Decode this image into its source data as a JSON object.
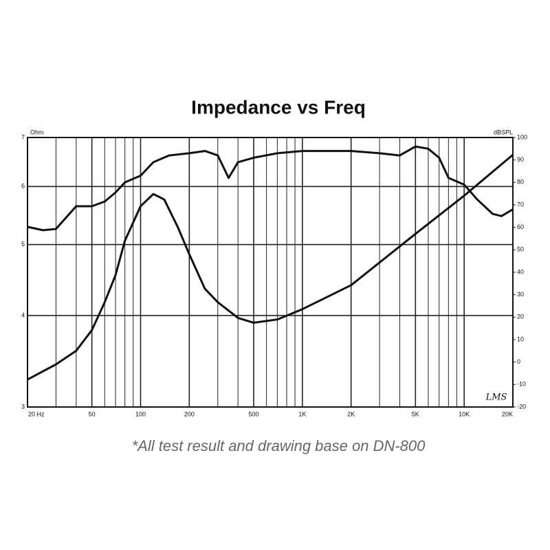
{
  "chart_data": {
    "type": "line",
    "title": "Impedance vs Freq",
    "footnote": "*All test result and drawing base on DN-800",
    "annotation": "LMS",
    "ylabel": "Ohm",
    "y2label": "dBSPL",
    "xscale": "log",
    "yscale": "log",
    "xlim": [
      20,
      20000
    ],
    "xticks": [
      {
        "value": 20,
        "label": "20 Hz"
      },
      50,
      100,
      200,
      500,
      {
        "value": 1000,
        "label": "1K"
      },
      {
        "value": 2000,
        "label": "2K"
      },
      {
        "value": 5000,
        "label": "5K"
      },
      {
        "value": 10000,
        "label": "10K"
      },
      {
        "value": 20000,
        "label": "20K"
      }
    ],
    "x_minor_ticks": [
      30,
      40,
      60,
      70,
      80,
      90,
      300,
      400,
      600,
      700,
      800,
      900,
      3000,
      4000,
      6000,
      7000,
      8000,
      9000
    ],
    "ylim": [
      3,
      7
    ],
    "yticks": [
      3,
      4,
      5,
      6,
      7
    ],
    "y2lim": [
      -20,
      100
    ],
    "y2ticks": [
      -20,
      -10,
      0,
      10,
      20,
      30,
      40,
      50,
      60,
      70,
      80,
      90,
      100
    ],
    "grid": true,
    "series": [
      {
        "name": "Impedance",
        "color": "#111111",
        "x": [
          20,
          30,
          40,
          50,
          60,
          70,
          80,
          100,
          120,
          140,
          170,
          200,
          250,
          300,
          400,
          500,
          700,
          1000,
          2000,
          5000,
          10000,
          20000
        ],
        "values": [
          3.27,
          3.43,
          3.58,
          3.82,
          4.17,
          4.54,
          5.06,
          5.64,
          5.86,
          5.76,
          5.28,
          4.85,
          4.35,
          4.17,
          3.97,
          3.91,
          3.95,
          4.08,
          4.4,
          5.17,
          5.83,
          6.63
        ]
      },
      {
        "name": "SPL",
        "color": "#111111",
        "axis": "y2",
        "x": [
          20,
          25,
          30,
          40,
          50,
          60,
          70,
          80,
          100,
          120,
          150,
          200,
          250,
          300,
          350,
          400,
          500,
          700,
          1000,
          2000,
          3000,
          4000,
          5000,
          6000,
          7000,
          8000,
          10000,
          12000,
          15000,
          17000,
          20000
        ],
        "values": [
          60.2,
          58.7,
          59.3,
          69.4,
          69.4,
          71.5,
          75.5,
          80,
          83,
          89,
          92,
          93,
          94,
          92,
          82,
          89,
          91,
          93,
          94,
          94,
          93,
          92,
          96,
          95,
          91,
          82,
          79,
          72.5,
          66,
          65,
          68
        ]
      }
    ]
  }
}
